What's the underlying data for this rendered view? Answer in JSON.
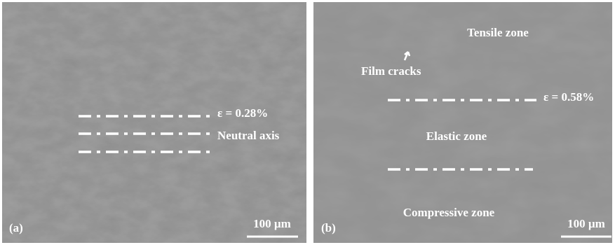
{
  "panels": [
    {
      "label": "(a)",
      "scale_bar": "100 µm",
      "annotations": [
        "ε = 0.28%",
        "Neutral axis"
      ]
    },
    {
      "label": "(b)",
      "scale_bar": "100 µm",
      "annotations": [
        "Tensile zone",
        "Film cracks",
        "ε = 0.58%",
        "Elastic zone",
        "Compressive zone"
      ]
    }
  ]
}
